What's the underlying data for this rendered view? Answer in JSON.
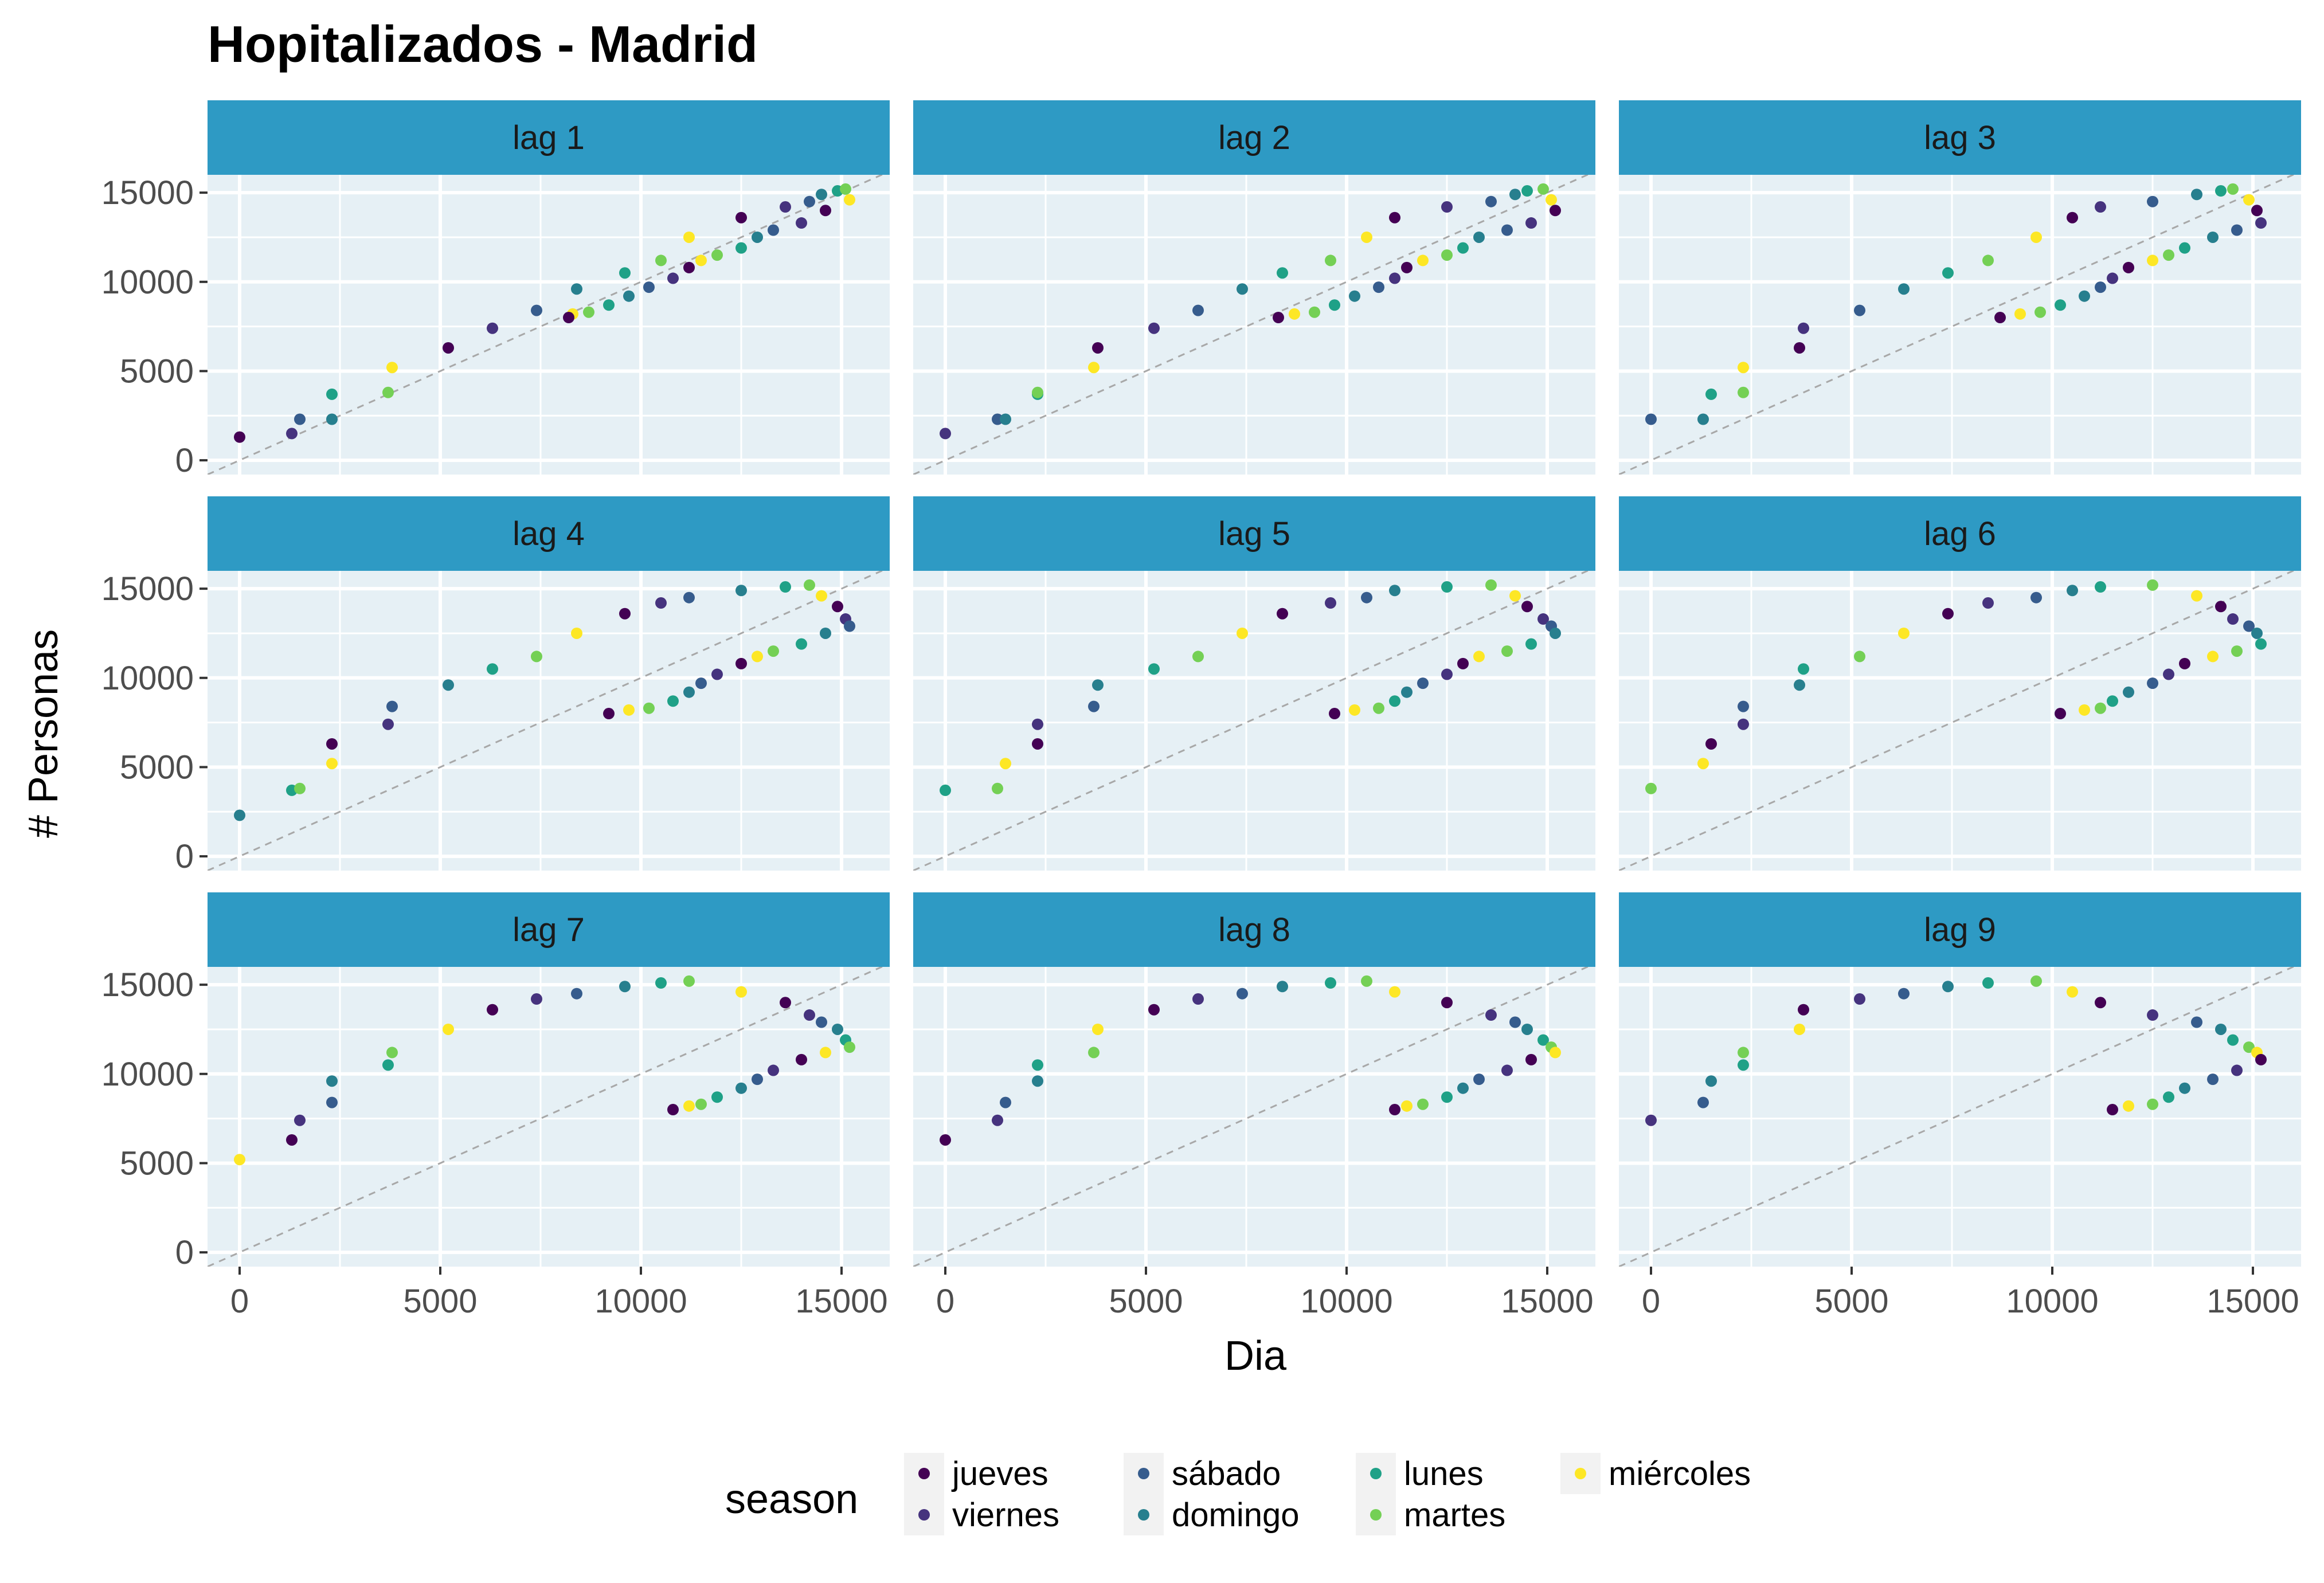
{
  "chart_data": {
    "type": "scatter",
    "title": "Hopitalizados - Madrid",
    "xlabel": "Dia",
    "ylabel": "# Personas",
    "xlim": [
      -800,
      16200
    ],
    "ylim": [
      -800,
      16000
    ],
    "x_ticks": [
      0,
      5000,
      10000,
      15000
    ],
    "y_ticks": [
      0,
      5000,
      10000,
      15000
    ],
    "x_tick_labels": [
      "0",
      "5000",
      "10000",
      "15000"
    ],
    "y_tick_labels": [
      "0",
      "5000",
      "10000",
      "15000"
    ],
    "grid": true,
    "reference_line": "y = x (dashed)",
    "facets": [
      "lag 1",
      "lag 2",
      "lag 3",
      "lag 4",
      "lag 5",
      "lag 6",
      "lag 7",
      "lag 8",
      "lag 9"
    ],
    "legend": {
      "title": "season",
      "position": "bottom",
      "entries": [
        {
          "label": "jueves",
          "color": "#440154"
        },
        {
          "label": "viernes",
          "color": "#46337e"
        },
        {
          "label": "sábado",
          "color": "#365c8d"
        },
        {
          "label": "domingo",
          "color": "#277f8e"
        },
        {
          "label": "lunes",
          "color": "#1fa187"
        },
        {
          "label": "martes",
          "color": "#74d055"
        },
        {
          "label": "miércoles",
          "color": "#fde725"
        }
      ]
    },
    "colors": {
      "panel_bg": "#e6f0f5",
      "strip_bg": "#2e9ac4",
      "grid": "#ffffff",
      "reference_line": "#a8a8a8"
    },
    "series_y": [
      0,
      1300,
      1500,
      2300,
      2300,
      3700,
      3800,
      5200,
      6300,
      7400,
      8400,
      9600,
      10500,
      11200,
      12500,
      13600,
      14200,
      14500,
      14900,
      15100,
      15200,
      14600,
      14000,
      13300,
      12900,
      12500,
      11900,
      11500,
      11200,
      10800,
      10200,
      9700,
      9200,
      8700,
      8300,
      8200,
      8000
    ],
    "series_season": [
      "miércoles",
      "jueves",
      "viernes",
      "sábado",
      "domingo",
      "lunes",
      "martes",
      "miércoles",
      "jueves",
      "viernes",
      "sábado",
      "domingo",
      "lunes",
      "martes",
      "miércoles",
      "jueves",
      "viernes",
      "sábado",
      "domingo",
      "lunes",
      "martes",
      "miércoles",
      "jueves",
      "viernes",
      "sábado",
      "domingo",
      "lunes",
      "martes",
      "miércoles",
      "jueves",
      "viernes",
      "sábado",
      "domingo",
      "lunes",
      "martes",
      "miércoles",
      "jueves"
    ]
  }
}
